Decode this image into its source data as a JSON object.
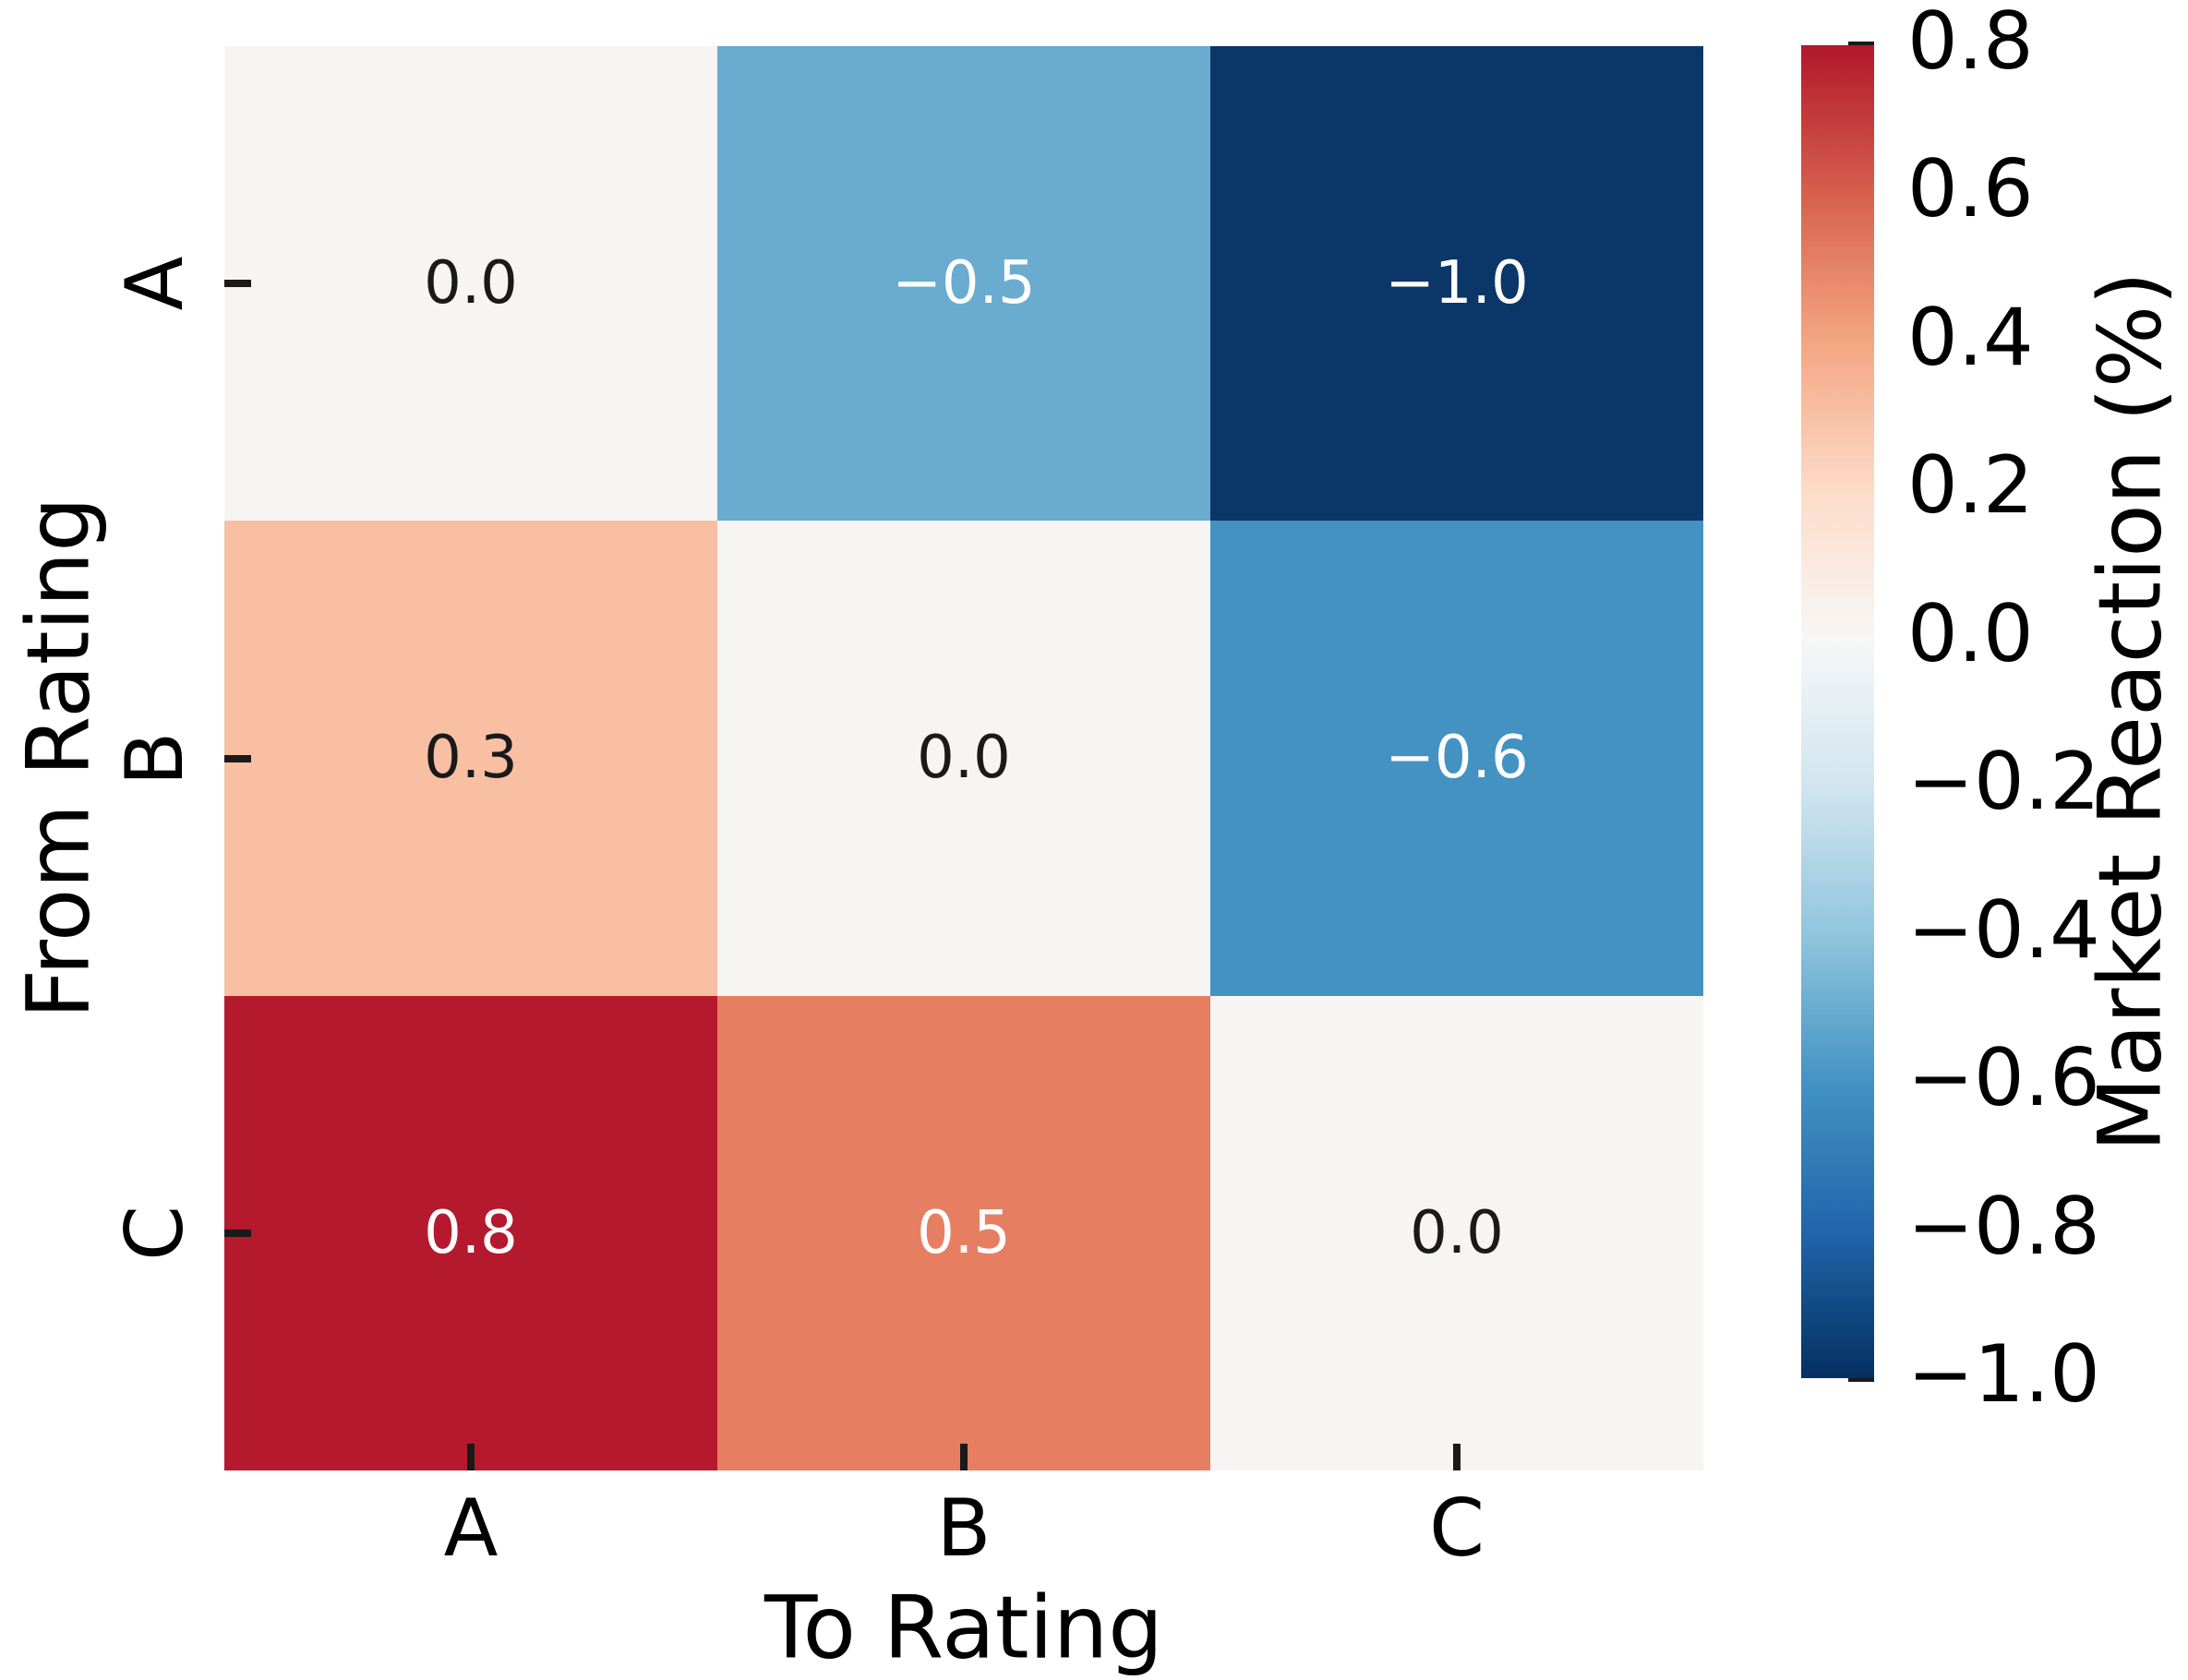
{
  "chart_data": {
    "type": "heatmap",
    "title": "",
    "xlabel": "To Rating",
    "ylabel": "From Rating",
    "x_categories": [
      "A",
      "B",
      "C"
    ],
    "y_categories": [
      "A",
      "B",
      "C"
    ],
    "series": [
      {
        "name": "A",
        "values": [
          0.0,
          -0.5,
          -1.0
        ]
      },
      {
        "name": "B",
        "values": [
          0.3,
          0.0,
          -0.6
        ]
      },
      {
        "name": "C",
        "values": [
          0.8,
          0.5,
          0.0
        ]
      }
    ],
    "cells": [
      [
        {
          "label": "0.0",
          "value": 0.0,
          "bg": "#f6f5f4",
          "fg": "#1a1a1a"
        },
        {
          "label": "−0.5",
          "value": -0.5,
          "bg": "#6aacd0",
          "fg": "#ffffff"
        },
        {
          "label": "−1.0",
          "value": -1.0,
          "bg": "#0b3768",
          "fg": "#ffffff"
        }
      ],
      [
        {
          "label": "0.3",
          "value": 0.3,
          "bg": "#f8bfa3",
          "fg": "#1a1a1a"
        },
        {
          "label": "0.0",
          "value": 0.0,
          "bg": "#f6f5f4",
          "fg": "#1a1a1a"
        },
        {
          "label": "−0.6",
          "value": -0.6,
          "bg": "#4392c2",
          "fg": "#ffffff"
        }
      ],
      [
        {
          "label": "0.8",
          "value": 0.8,
          "bg": "#b5192d",
          "fg": "#ffffff"
        },
        {
          "label": "0.5",
          "value": 0.5,
          "bg": "#e67f62",
          "fg": "#ffffff"
        },
        {
          "label": "0.0",
          "value": 0.0,
          "bg": "#f6f5f4",
          "fg": "#1a1a1a"
        }
      ]
    ],
    "colorbar": {
      "label": "Market Reaction (%)",
      "vmin": -1.0,
      "vmax": 0.8,
      "tick_labels": [
        "0.8",
        "0.6",
        "0.4",
        "0.2",
        "0.0",
        "−0.2",
        "−0.4",
        "−0.6",
        "−0.8",
        "−1.0"
      ],
      "gradient_stops": [
        {
          "pos": 0.0,
          "color": "#b2182b"
        },
        {
          "pos": 0.1111,
          "color": "#d6604d"
        },
        {
          "pos": 0.2222,
          "color": "#f4a582"
        },
        {
          "pos": 0.3333,
          "color": "#fddbc7"
        },
        {
          "pos": 0.4444,
          "color": "#f7f7f7"
        },
        {
          "pos": 0.5556,
          "color": "#d1e5f0"
        },
        {
          "pos": 0.6667,
          "color": "#92c5de"
        },
        {
          "pos": 0.7778,
          "color": "#4393c3"
        },
        {
          "pos": 0.8889,
          "color": "#2166ac"
        },
        {
          "pos": 1.0,
          "color": "#053061"
        }
      ]
    },
    "layout_hints": {
      "legend_position": "right-colorbar",
      "grid": false,
      "tick_direction": "in",
      "y_tick_labels_rotated": true
    },
    "background_color": "#ffffff",
    "annotation_dark_color": "#1a1a1a",
    "annotation_light_color": "#ffffff"
  }
}
